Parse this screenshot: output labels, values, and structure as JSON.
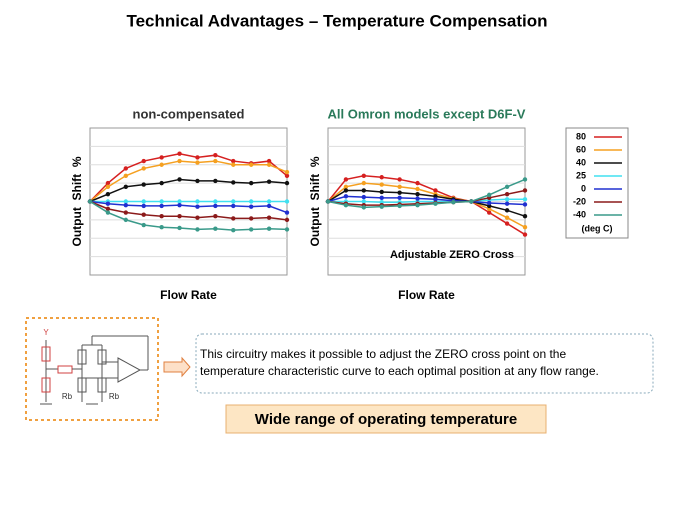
{
  "title": "Technical Advantages – Temperature Compensation",
  "chart_data": [
    {
      "type": "line",
      "title": "non-compensated",
      "y_label": "Output  Shift  %",
      "x_label": "Flow Rate",
      "categories": [
        null,
        null,
        null,
        null,
        null,
        null,
        null,
        null,
        null,
        null,
        null,
        null
      ],
      "ylim": [
        -10,
        10
      ],
      "series": [
        {
          "name": "80",
          "color": "#d62020",
          "values": [
            0,
            2.5,
            4.5,
            5.5,
            6,
            6.5,
            6,
            6.3,
            5.5,
            5.2,
            5.5,
            3.5
          ]
        },
        {
          "name": "60",
          "color": "#f5a020",
          "values": [
            0,
            2,
            3.5,
            4.5,
            5,
            5.5,
            5.3,
            5.5,
            5,
            5,
            5,
            4
          ]
        },
        {
          "name": "40",
          "color": "#111111",
          "values": [
            0,
            1,
            2,
            2.3,
            2.5,
            3,
            2.8,
            2.8,
            2.6,
            2.5,
            2.7,
            2.5
          ]
        },
        {
          "name": "25",
          "color": "#40e0f0",
          "values": [
            0,
            0,
            0,
            0,
            0,
            0,
            0,
            0,
            0,
            0,
            0,
            0
          ]
        },
        {
          "name": "0",
          "color": "#2030d0",
          "values": [
            0,
            -0.3,
            -0.5,
            -0.6,
            -0.6,
            -0.5,
            -0.7,
            -0.6,
            -0.6,
            -0.7,
            -0.6,
            -1.5
          ]
        },
        {
          "name": "-20",
          "color": "#8b1a1a",
          "values": [
            0,
            -1,
            -1.5,
            -1.8,
            -2,
            -2,
            -2.2,
            -2,
            -2.3,
            -2.3,
            -2.2,
            -2.5
          ]
        },
        {
          "name": "-40",
          "color": "#3a9a8a",
          "values": [
            0,
            -1.5,
            -2.5,
            -3.2,
            -3.5,
            -3.6,
            -3.8,
            -3.7,
            -3.9,
            -3.8,
            -3.7,
            -3.8
          ]
        }
      ]
    },
    {
      "type": "line",
      "title": "All Omron models except D6F-V",
      "y_label": "Output  Shift  %",
      "x_label": "Flow Rate",
      "annotation": "Adjustable ZERO Cross",
      "categories": [
        null,
        null,
        null,
        null,
        null,
        null,
        null,
        null,
        null,
        null,
        null,
        null
      ],
      "ylim": [
        -10,
        10
      ],
      "series": [
        {
          "color": "#d62020",
          "values": [
            0,
            3,
            3.5,
            3.3,
            3,
            2.5,
            1.5,
            0.5,
            0,
            -1.5,
            -3,
            -4.5
          ]
        },
        {
          "color": "#f5a020",
          "values": [
            0,
            2,
            2.5,
            2.3,
            2,
            1.7,
            1,
            0.4,
            0,
            -1,
            -2.2,
            -3.5
          ]
        },
        {
          "color": "#111111",
          "values": [
            0,
            1.5,
            1.5,
            1.3,
            1.2,
            1,
            0.7,
            0.3,
            0,
            -0.6,
            -1.2,
            -2
          ]
        },
        {
          "color": "#40e0f0",
          "values": [
            0,
            0,
            0,
            -0.1,
            -0.1,
            0,
            0,
            0,
            0,
            0.2,
            0.3,
            0.3
          ]
        },
        {
          "color": "#2030d0",
          "values": [
            0,
            0.7,
            0.6,
            0.5,
            0.5,
            0.4,
            0.3,
            0.1,
            0,
            -0.2,
            -0.3,
            -0.4
          ]
        },
        {
          "color": "#8b1a1a",
          "values": [
            0,
            -0.3,
            -0.5,
            -0.5,
            -0.4,
            -0.3,
            -0.2,
            -0.1,
            0,
            0.5,
            1,
            1.5
          ]
        },
        {
          "color": "#3a9a8a",
          "values": [
            0,
            -0.5,
            -0.8,
            -0.7,
            -0.6,
            -0.5,
            -0.3,
            -0.1,
            0,
            0.9,
            2,
            3
          ]
        }
      ]
    }
  ],
  "legend_note": "(deg C)",
  "circuit": {
    "labels": [
      "Y",
      "Rb",
      "Rb"
    ]
  },
  "note": [
    "This circuitry makes it possible to adjust the ZERO cross point on the",
    "temperature characteristic curve to each optimal position at any flow range."
  ],
  "banner": "Wide range of operating temperature"
}
